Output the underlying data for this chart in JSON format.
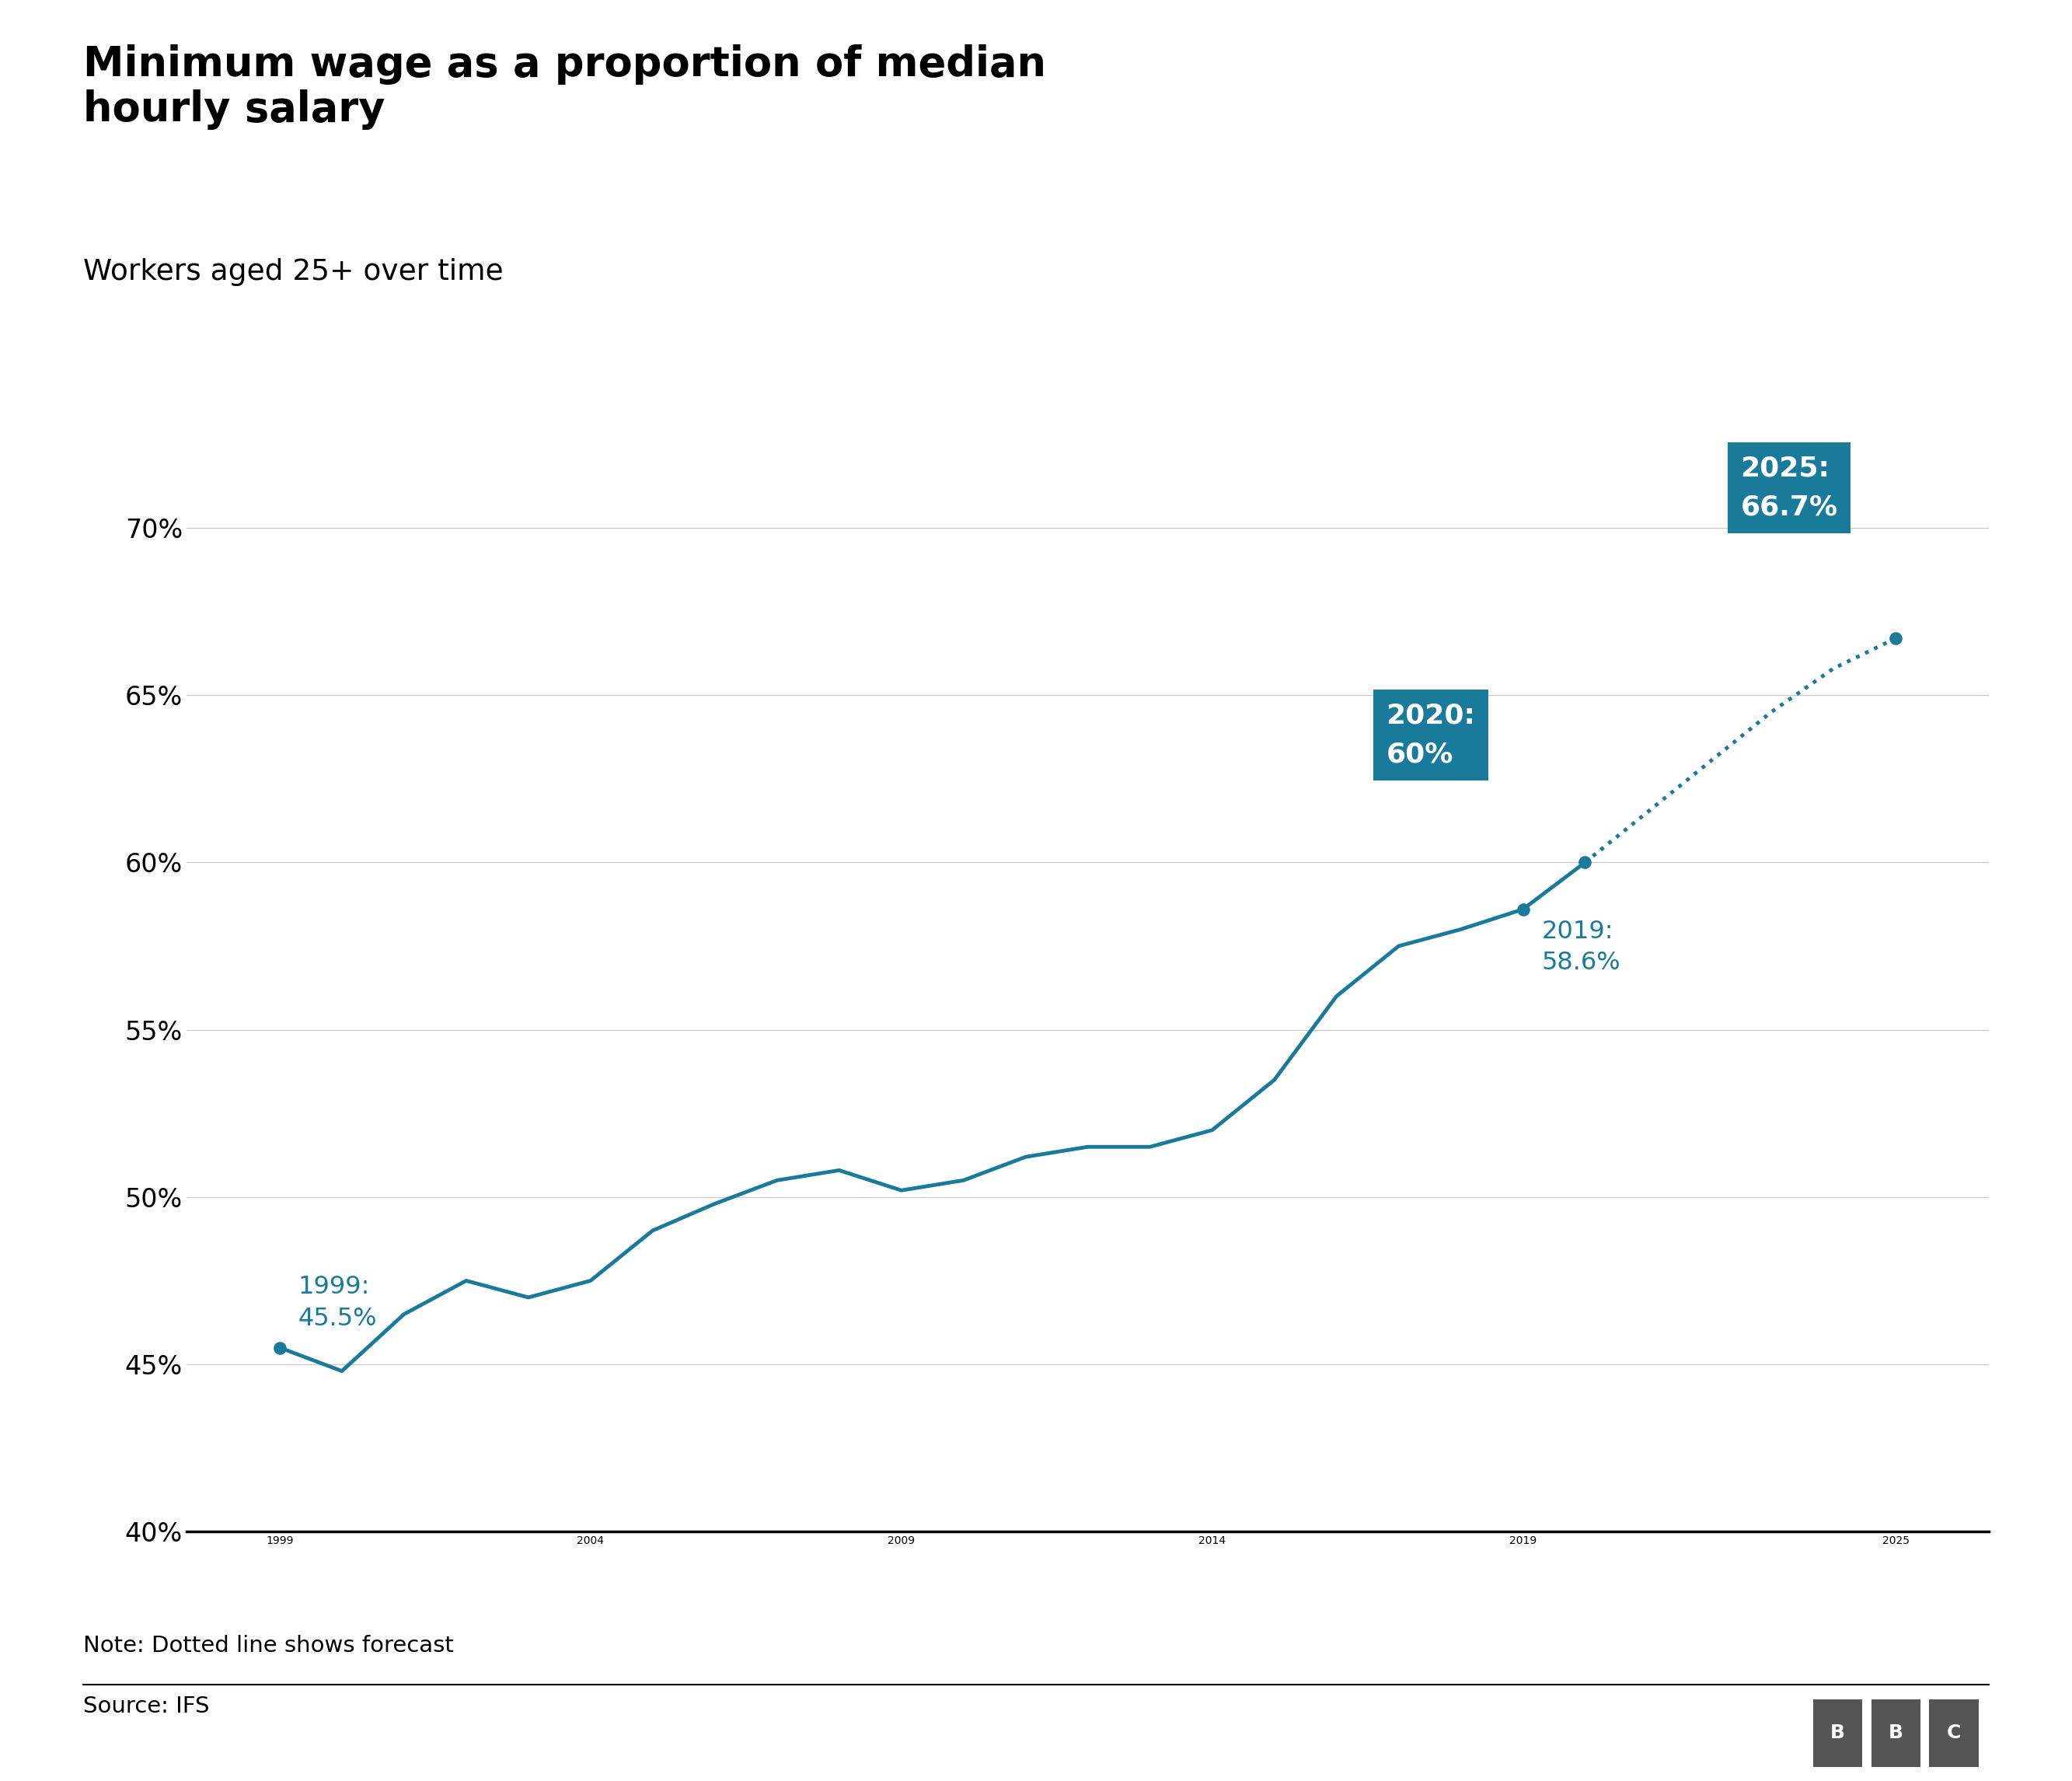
{
  "title": "Minimum wage as a proportion of median\nhourly salary",
  "subtitle": "Workers aged 25+ over time",
  "note": "Note: Dotted line shows forecast",
  "source": "Source: IFS",
  "line_color": "#1a7a9a",
  "background_color": "#ffffff",
  "annotation_bg_color": "#1a7a9a",
  "annotation_text_color": "#ffffff",
  "solid_data": {
    "years": [
      1999,
      2000,
      2001,
      2002,
      2003,
      2004,
      2005,
      2006,
      2007,
      2008,
      2009,
      2010,
      2011,
      2012,
      2013,
      2014,
      2015,
      2016,
      2017,
      2018,
      2019,
      2020
    ],
    "values": [
      45.5,
      44.8,
      46.5,
      47.5,
      47.0,
      47.5,
      49.0,
      49.8,
      50.5,
      50.8,
      50.2,
      50.5,
      51.2,
      51.5,
      51.5,
      52.0,
      53.5,
      56.0,
      57.5,
      58.0,
      58.6,
      60.0
    ]
  },
  "dotted_data": {
    "years": [
      2020,
      2021,
      2022,
      2023,
      2024,
      2025
    ],
    "values": [
      60.0,
      61.5,
      63.0,
      64.5,
      65.8,
      66.7
    ]
  },
  "annotated_points": {
    "1999": 45.5,
    "2019": 58.6,
    "2020": 60.0,
    "2025": 66.7
  },
  "ylim": [
    40,
    73
  ],
  "yticks": [
    40,
    45,
    50,
    55,
    60,
    65,
    70
  ],
  "ytick_labels": [
    "40%",
    "45%",
    "50%",
    "55%",
    "60%",
    "65%",
    "70%"
  ],
  "xlim": [
    1997.5,
    2026.5
  ],
  "xticks": [
    1999,
    2004,
    2009,
    2014,
    2019,
    2025
  ],
  "line_width": 3.5,
  "dot_size": 120,
  "title_fontsize": 38,
  "subtitle_fontsize": 27,
  "tick_fontsize": 24,
  "annotation_fontsize": 23,
  "note_fontsize": 21,
  "source_fontsize": 21,
  "bbc_fontsize": 18
}
